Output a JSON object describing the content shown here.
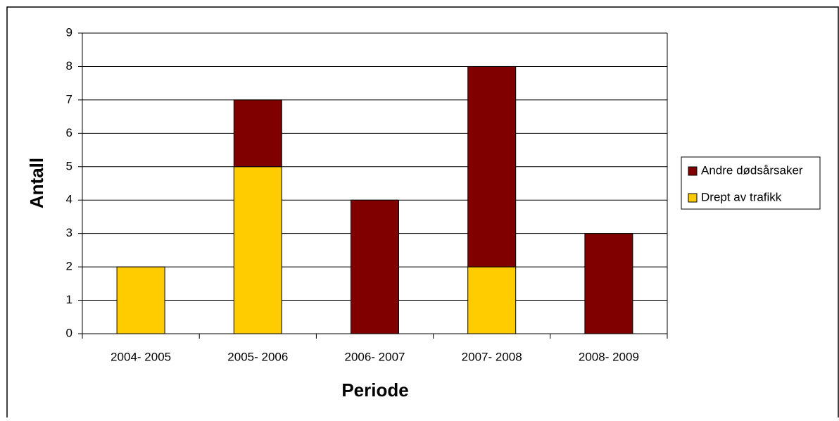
{
  "chart_data": {
    "type": "stacked-bar",
    "x_label": "Periode",
    "y_label": "Antall",
    "categories": [
      "2004- 2005",
      "2005- 2006",
      "2006- 2007",
      "2007- 2008",
      "2008- 2009"
    ],
    "series": [
      {
        "name": "Andre dødsårsaker",
        "color": "#800000",
        "values": [
          0,
          2,
          4,
          6,
          3
        ]
      },
      {
        "name": "Drept av trafikk",
        "color": "#ffcc00",
        "values": [
          2,
          5,
          0,
          2,
          0
        ]
      }
    ],
    "ylim": [
      0,
      9
    ],
    "yticks": [
      0,
      1,
      2,
      3,
      4,
      5,
      6,
      7,
      8,
      9
    ],
    "grid": true,
    "legend": "right"
  }
}
